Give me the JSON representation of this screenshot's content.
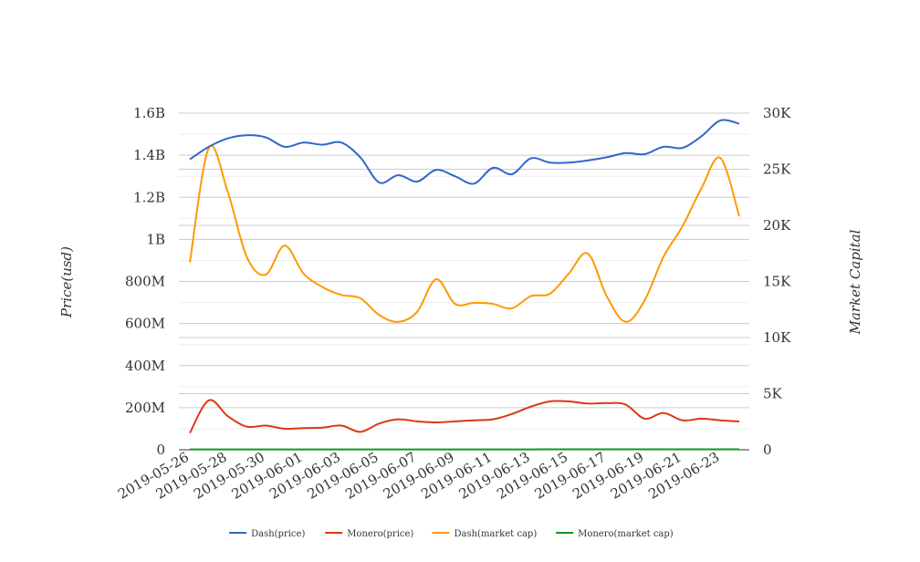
{
  "chart_data": {
    "type": "line",
    "x": [
      "2019-05-26",
      "2019-05-27",
      "2019-05-28",
      "2019-05-29",
      "2019-05-30",
      "2019-05-31",
      "2019-06-01",
      "2019-06-02",
      "2019-06-03",
      "2019-06-04",
      "2019-06-05",
      "2019-06-06",
      "2019-06-07",
      "2019-06-08",
      "2019-06-09",
      "2019-06-10",
      "2019-06-11",
      "2019-06-12",
      "2019-06-13",
      "2019-06-14",
      "2019-06-15",
      "2019-06-16",
      "2019-06-17",
      "2019-06-18",
      "2019-06-19",
      "2019-06-20",
      "2019-06-21",
      "2019-06-22",
      "2019-06-23",
      "2019-06-24"
    ],
    "x_tick_labels": [
      "2019-05-26",
      "2019-05-28",
      "2019-05-30",
      "2019-06-01",
      "2019-06-03",
      "2019-06-05",
      "2019-06-07",
      "2019-06-09",
      "2019-06-11",
      "2019-06-13",
      "2019-06-15",
      "2019-06-17",
      "2019-06-19",
      "2019-06-21",
      "2019-06-23"
    ],
    "y_left": {
      "label": "Price(usd)",
      "range": [
        0,
        1600000000
      ],
      "ticks": [
        0,
        200000000,
        400000000,
        600000000,
        800000000,
        1000000000,
        1200000000,
        1400000000,
        1600000000
      ],
      "tick_labels": [
        "0",
        "200M",
        "400M",
        "600M",
        "800M",
        "1B",
        "1.2B",
        "1.4B",
        "1.6B"
      ]
    },
    "y_right": {
      "label": "Market Capital",
      "range": [
        0,
        30000
      ],
      "ticks": [
        0,
        5000,
        10000,
        15000,
        20000,
        25000,
        30000
      ],
      "tick_labels": [
        "0",
        "5K",
        "10K",
        "15K",
        "20K",
        "25K",
        "30K"
      ]
    },
    "series": [
      {
        "name": "Dash(price)",
        "axis": "left",
        "color": "#3366cc",
        "values": [
          1380000000,
          1440000000,
          1480000000,
          1495000000,
          1485000000,
          1440000000,
          1460000000,
          1450000000,
          1460000000,
          1390000000,
          1270000000,
          1305000000,
          1275000000,
          1330000000,
          1300000000,
          1265000000,
          1340000000,
          1310000000,
          1385000000,
          1365000000,
          1365000000,
          1375000000,
          1390000000,
          1410000000,
          1405000000,
          1440000000,
          1435000000,
          1490000000,
          1565000000,
          1550000000
        ]
      },
      {
        "name": "Monero(price)",
        "axis": "left",
        "color": "#dc3912",
        "values": [
          80000000,
          235000000,
          160000000,
          110000000,
          115000000,
          100000000,
          103000000,
          105000000,
          115000000,
          85000000,
          125000000,
          145000000,
          135000000,
          130000000,
          135000000,
          140000000,
          145000000,
          170000000,
          205000000,
          230000000,
          230000000,
          220000000,
          222000000,
          215000000,
          148000000,
          175000000,
          140000000,
          148000000,
          140000000,
          135000000
        ]
      },
      {
        "name": "Dash(market cap)",
        "axis": "right",
        "color": "#ff9900",
        "values": [
          16700,
          26900,
          23000,
          17200,
          15600,
          18200,
          15700,
          14500,
          13800,
          13500,
          12000,
          11400,
          12300,
          15200,
          13000,
          13100,
          13000,
          12600,
          13700,
          13900,
          15700,
          17500,
          13700,
          11400,
          13300,
          17200,
          19900,
          23300,
          26000,
          20800
        ]
      },
      {
        "name": "Monero(market cap)",
        "axis": "right",
        "color": "#109618",
        "values": [
          30,
          32,
          33,
          33,
          33,
          34,
          34,
          34,
          35,
          34,
          35,
          35,
          35,
          35,
          35,
          35,
          36,
          36,
          36,
          37,
          37,
          37,
          37,
          37,
          37,
          38,
          38,
          39,
          40,
          40
        ]
      }
    ],
    "legend_position": "bottom",
    "grid": true
  }
}
